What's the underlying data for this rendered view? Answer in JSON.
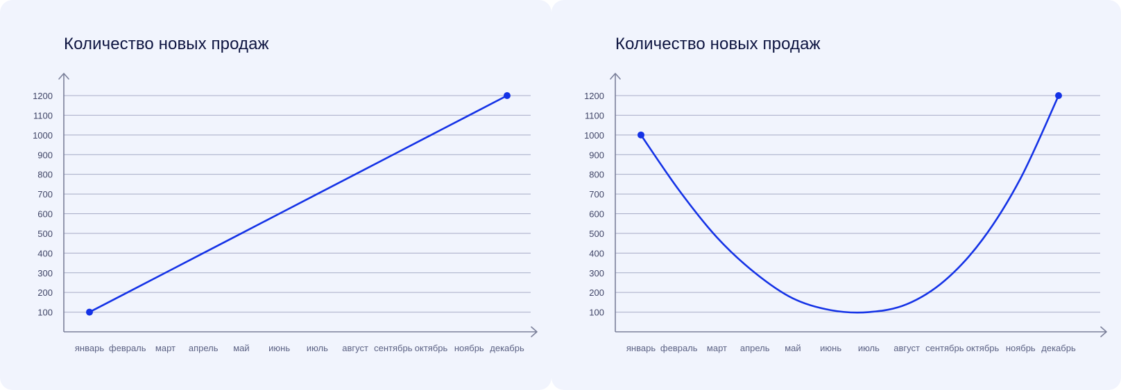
{
  "chart_data": [
    {
      "type": "line",
      "title": "Количество новых продаж",
      "categories": [
        "январь",
        "февраль",
        "март",
        "апрель",
        "май",
        "июнь",
        "июль",
        "август",
        "сентябрь",
        "октябрь",
        "ноябрь",
        "декабрь"
      ],
      "y_ticks": [
        100,
        200,
        300,
        400,
        500,
        600,
        700,
        800,
        900,
        1000,
        1100,
        1200
      ],
      "ylim": [
        0,
        1200
      ],
      "grid": true,
      "series": [
        {
          "values": [
            100,
            200,
            300,
            400,
            500,
            600,
            700,
            800,
            900,
            1000,
            1100,
            1200
          ],
          "curve": "straight",
          "markers": "endpoints",
          "color": "#1432e6"
        }
      ]
    },
    {
      "type": "line",
      "title": "Количество новых продаж",
      "categories": [
        "январь",
        "февраль",
        "март",
        "апрель",
        "май",
        "июнь",
        "июль",
        "август",
        "сентябрь",
        "октябрь",
        "ноябрь",
        "декабрь"
      ],
      "y_ticks": [
        100,
        200,
        300,
        400,
        500,
        600,
        700,
        800,
        900,
        1000,
        1100,
        1200
      ],
      "ylim": [
        0,
        1200
      ],
      "grid": true,
      "series": [
        {
          "values": [
            1000,
            720,
            480,
            300,
            170,
            110,
            100,
            140,
            260,
            470,
            780,
            1200
          ],
          "curve": "smooth",
          "markers": "endpoints",
          "color": "#1432e6"
        }
      ]
    }
  ]
}
